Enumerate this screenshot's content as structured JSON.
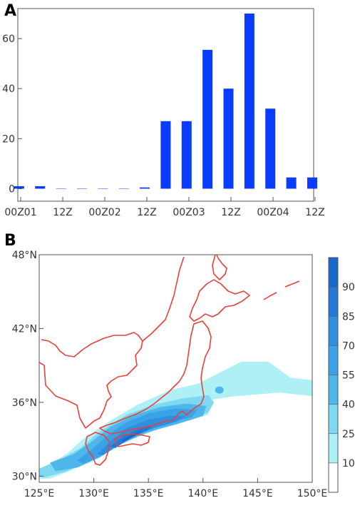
{
  "panel_a_label": "A",
  "panel_b_label": "B",
  "chart_data": [
    {
      "type": "bar",
      "title": "",
      "xlabel": "",
      "ylabel": "",
      "ylim": [
        -5,
        72
      ],
      "yticks": [
        0,
        20,
        40,
        60
      ],
      "x_tick_labels": [
        "00Z01",
        "12Z",
        "00Z02",
        "12Z",
        "00Z03",
        "12Z",
        "00Z04",
        "12Z"
      ],
      "categories": [
        "00Z01",
        "06Z01",
        "12Z01",
        "18Z01",
        "00Z02",
        "06Z02",
        "12Z02",
        "18Z02",
        "00Z03",
        "06Z03",
        "12Z03",
        "18Z03",
        "00Z04",
        "06Z04",
        "12Z04"
      ],
      "values": [
        1,
        1,
        0,
        0,
        0,
        0,
        0.5,
        27,
        27,
        55.5,
        40,
        70,
        32,
        4.5,
        4.5
      ],
      "bar_color": "#0a3cff",
      "grid": false
    },
    {
      "type": "heatmap",
      "subtype": "filled contour map",
      "title": "",
      "x_tick_labels": [
        "125°E",
        "130°E",
        "135°E",
        "140°E",
        "145°E",
        "150°E"
      ],
      "y_tick_labels": [
        "30°N",
        "36°N",
        "42°N",
        "48°N"
      ],
      "xlim": [
        125,
        150
      ],
      "ylim": [
        29.5,
        48
      ],
      "colorbar_labels": [
        "10",
        "25",
        "40",
        "55",
        "70",
        "85",
        "90"
      ],
      "colorbar_colors": [
        "#ffffff",
        "#aef0f6",
        "#7ed8f2",
        "#4fb6ec",
        "#3aa2e6",
        "#2f8fde",
        "#2478d6",
        "#1a68cc"
      ],
      "coastline_color": "#e8403a",
      "levels": [
        {
          "min": 10,
          "color": "#aef0f6",
          "polygon": [
            [
              125,
              30.5
            ],
            [
              127.5,
              31.8
            ],
            [
              129,
              33
            ],
            [
              131.5,
              34.5
            ],
            [
              134,
              35.8
            ],
            [
              137,
              37
            ],
            [
              139.5,
              37.5
            ],
            [
              141.5,
              38.4
            ],
            [
              143.5,
              39.3
            ],
            [
              146,
              39.3
            ],
            [
              148,
              38
            ],
            [
              150,
              37.8
            ],
            [
              150,
              36.5
            ],
            [
              147,
              36.8
            ],
            [
              143,
              36.5
            ],
            [
              140.5,
              36.2
            ],
            [
              140.5,
              35
            ],
            [
              138.5,
              34.5
            ],
            [
              136,
              34
            ],
            [
              134,
              33.3
            ],
            [
              132,
              32.5
            ],
            [
              130,
              31.5
            ],
            [
              128,
              30.5
            ],
            [
              126,
              29.8
            ],
            [
              125,
              29.8
            ]
          ]
        },
        {
          "min": 25,
          "color": "#7ed8f2",
          "polygon": [
            [
              125,
              30.6
            ],
            [
              127,
              31.4
            ],
            [
              128.8,
              32.3
            ],
            [
              130.5,
              33.6
            ],
            [
              133,
              35
            ],
            [
              135.5,
              35.8
            ],
            [
              138,
              36.3
            ],
            [
              140.5,
              36.6
            ],
            [
              141,
              36
            ],
            [
              140.5,
              35.2
            ],
            [
              139,
              34.6
            ],
            [
              136.5,
              34
            ],
            [
              134,
              33.2
            ],
            [
              131.5,
              32.3
            ],
            [
              129.5,
              31.2
            ],
            [
              127.5,
              30.4
            ],
            [
              125.5,
              29.9
            ],
            [
              125,
              30
            ]
          ]
        },
        {
          "min": 40,
          "color": "#4fb6ec",
          "polygon": [
            [
              126,
              31.1
            ],
            [
              128.2,
              31.8
            ],
            [
              129.8,
              32.8
            ],
            [
              131.5,
              34
            ],
            [
              133.5,
              34.9
            ],
            [
              136,
              35.6
            ],
            [
              138.5,
              35.9
            ],
            [
              140.3,
              35.7
            ],
            [
              140,
              34.9
            ],
            [
              137.5,
              34.2
            ],
            [
              135,
              33.6
            ],
            [
              132.5,
              32.6
            ],
            [
              130.5,
              31.5
            ],
            [
              128.5,
              30.7
            ],
            [
              126.5,
              30.4
            ]
          ]
        },
        {
          "min": 55,
          "color": "#3aa2e6",
          "polygon": [
            [
              128.5,
              31.3
            ],
            [
              130,
              32.3
            ],
            [
              131.5,
              33.5
            ],
            [
              133,
              34.4
            ],
            [
              135,
              35.1
            ],
            [
              137.5,
              35.5
            ],
            [
              139.5,
              35.4
            ],
            [
              139,
              34.8
            ],
            [
              136.5,
              34.3
            ],
            [
              134,
              33.5
            ],
            [
              132,
              32.5
            ],
            [
              130.5,
              31.6
            ],
            [
              129,
              31
            ]
          ]
        },
        {
          "min": 70,
          "color": "#2f8fde",
          "polygon": [
            [
              130.3,
              31.8
            ],
            [
              131.5,
              32.8
            ],
            [
              133,
              33.9
            ],
            [
              135,
              34.6
            ],
            [
              137,
              34.9
            ],
            [
              138.5,
              34.9
            ],
            [
              137.5,
              34.4
            ],
            [
              135.5,
              33.9
            ],
            [
              133.5,
              33.2
            ],
            [
              131.8,
              32.3
            ],
            [
              130.8,
              31.7
            ]
          ]
        },
        {
          "min": 85,
          "color": "#2478d6",
          "polygon": [
            [
              131.5,
              32.4
            ],
            [
              132.8,
              33.3
            ],
            [
              134.3,
              33.9
            ],
            [
              135.6,
              34.2
            ],
            [
              134.8,
              33.7
            ],
            [
              133.2,
              33
            ],
            [
              132,
              32.3
            ]
          ]
        },
        {
          "min": 90,
          "color": "#1a68cc",
          "polygon": [
            [
              132.5,
              32.9
            ],
            [
              133.5,
              33.4
            ],
            [
              134.3,
              33.6
            ],
            [
              133.6,
              33.2
            ],
            [
              132.8,
              32.8
            ]
          ]
        }
      ]
    }
  ]
}
